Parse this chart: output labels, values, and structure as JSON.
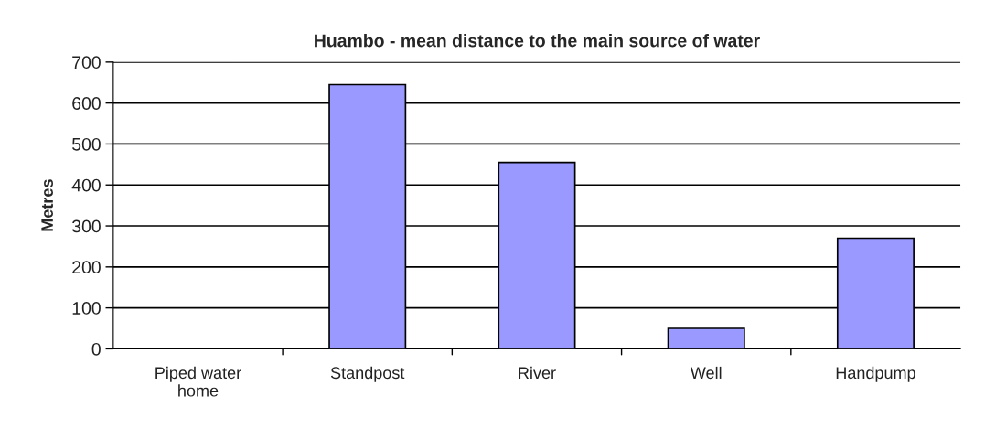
{
  "chart_data": {
    "type": "bar",
    "title": "Huambo - mean distance to the main source of water",
    "ylabel": "Metres",
    "categories": [
      "Piped water\nhome",
      "Standpost",
      "River",
      "Well",
      "Handpump"
    ],
    "values": [
      null,
      645,
      455,
      50,
      270
    ],
    "color": "#9999ff",
    "ylim": [
      0,
      700
    ],
    "yticks": [
      0,
      100,
      200,
      300,
      400,
      500,
      600,
      700
    ],
    "grid": "y",
    "legend": false
  }
}
